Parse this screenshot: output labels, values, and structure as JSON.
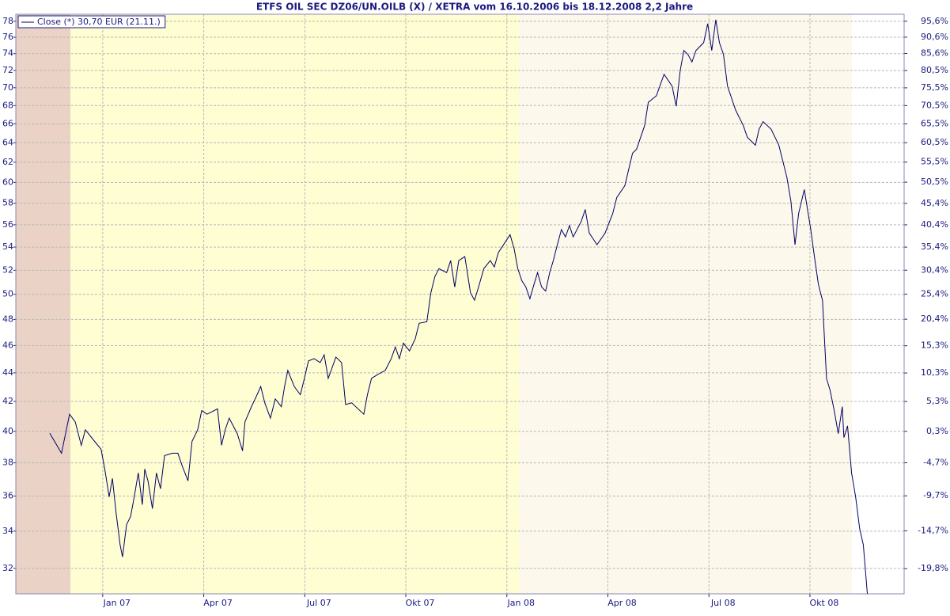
{
  "chart_data": {
    "type": "line",
    "title": "ETFS OIL SEC DZ06/UN.OILB (X) / XETRA vom 16.10.2006 bis 18.12.2008 2,2 Jahre",
    "x": [
      2006.869,
      2006.898,
      2006.918,
      2006.932,
      2006.947,
      2006.957,
      2006.98,
      2006.996,
      2007.006,
      2007.016,
      2007.024,
      2007.033,
      2007.043,
      2007.049,
      2007.059,
      2007.069,
      2007.078,
      2007.088,
      2007.098,
      2007.104,
      2007.112,
      2007.123,
      2007.133,
      2007.143,
      2007.153,
      2007.172,
      2007.186,
      2007.196,
      2007.211,
      2007.221,
      2007.235,
      2007.245,
      2007.258,
      2007.284,
      2007.294,
      2007.303,
      2007.313,
      2007.333,
      2007.346,
      2007.352,
      2007.368,
      2007.382,
      2007.391,
      2007.401,
      2007.415,
      2007.427,
      2007.442,
      2007.45,
      2007.458,
      2007.474,
      2007.489,
      2007.499,
      2007.509,
      2007.523,
      2007.538,
      2007.548,
      2007.558,
      2007.577,
      2007.591,
      2007.601,
      2007.616,
      2007.646,
      2007.655,
      2007.665,
      2007.681,
      2007.699,
      2007.714,
      2007.724,
      2007.734,
      2007.744,
      2007.759,
      2007.773,
      2007.783,
      2007.802,
      2007.812,
      2007.822,
      2007.832,
      2007.851,
      2007.861,
      2007.871,
      2007.881,
      2007.896,
      2007.91,
      2007.92,
      2007.93,
      2007.943,
      2007.959,
      2007.969,
      2007.979,
      2007.998,
      2008.008,
      2008.018,
      2008.027,
      2008.037,
      2008.047,
      2008.057,
      2008.067,
      2008.076,
      2008.086,
      2008.096,
      2008.106,
      2008.115,
      2008.125,
      2008.135,
      2008.145,
      2008.155,
      2008.164,
      2008.184,
      2008.194,
      2008.204,
      2008.223,
      2008.243,
      2008.262,
      2008.272,
      2008.292,
      2008.311,
      2008.321,
      2008.341,
      2008.35,
      2008.37,
      2008.389,
      2008.409,
      2008.419,
      2008.429,
      2008.438,
      2008.448,
      2008.458,
      2008.468,
      2008.487,
      2008.497,
      2008.507,
      2008.517,
      2008.526,
      2008.536,
      2008.546,
      2008.566,
      2008.585,
      2008.595,
      2008.615,
      2008.624,
      2008.634,
      2008.654,
      2008.673,
      2008.693,
      2008.703,
      2008.713,
      2008.722,
      2008.736,
      2008.752,
      2008.761,
      2008.771,
      2008.781,
      2008.791,
      2008.8,
      2008.81,
      2008.82,
      2008.83,
      2008.834,
      2008.843,
      2008.853,
      2008.863,
      2008.873,
      2008.882,
      2008.892
    ],
    "series": [
      {
        "name": "Close (*) 30,70 EUR (21.11.)",
        "color": "#000066",
        "values": [
          39.88,
          38.6,
          41.13,
          40.62,
          39.1,
          40.1,
          39.35,
          38.85,
          37.48,
          35.95,
          37.05,
          35.05,
          33.26,
          32.6,
          34.36,
          34.82,
          35.95,
          37.38,
          35.5,
          37.62,
          36.9,
          35.27,
          37.38,
          36.43,
          38.45,
          38.6,
          38.6,
          37.86,
          36.9,
          39.35,
          40.1,
          41.38,
          41.13,
          41.49,
          39.1,
          40.1,
          40.87,
          39.85,
          38.75,
          40.62,
          41.64,
          42.46,
          43.03,
          41.9,
          40.87,
          42.17,
          41.64,
          43.03,
          44.17,
          43.03,
          42.46,
          43.6,
          44.86,
          45.03,
          44.74,
          45.31,
          43.6,
          45.14,
          44.74,
          41.79,
          41.9,
          41.13,
          42.46,
          43.6,
          43.89,
          44.17,
          45.03,
          45.89,
          45.03,
          46.18,
          45.6,
          46.48,
          47.7,
          47.82,
          50.13,
          51.47,
          52.14,
          51.8,
          52.83,
          50.6,
          52.83,
          53.17,
          50.13,
          49.52,
          50.6,
          52.14,
          52.83,
          52.28,
          53.52,
          54.55,
          55.1,
          53.86,
          52.14,
          51.13,
          50.6,
          49.64,
          50.8,
          51.8,
          50.6,
          50.27,
          51.8,
          52.83,
          54.21,
          55.56,
          54.9,
          55.93,
          54.9,
          56.3,
          57.41,
          55.24,
          54.21,
          55.24,
          57.04,
          58.54,
          59.69,
          62.92,
          63.33,
          65.83,
          68.36,
          69.09,
          71.55,
          70.18,
          67.92,
          72.0,
          74.38,
          73.9,
          73.0,
          74.38,
          75.33,
          77.7,
          74.38,
          78.2,
          75.33,
          73.9,
          70.18,
          67.5,
          65.83,
          64.58,
          63.75,
          65.42,
          66.25,
          65.42,
          63.75,
          60.48,
          58.15,
          54.21,
          57.04,
          59.31,
          55.56,
          53.17,
          50.8,
          49.52,
          43.6,
          42.75,
          41.38,
          39.85,
          41.64,
          39.6,
          40.36,
          37.38,
          35.95,
          34.14,
          33.26,
          30.7
        ]
      }
    ],
    "xlim": [
      2006.785,
      2008.983
    ],
    "xticks": [
      {
        "value": 2007.0,
        "label": "Jan 07"
      },
      {
        "value": 2007.25,
        "label": "Apr 07"
      },
      {
        "value": 2007.5,
        "label": "Jul 07"
      },
      {
        "value": 2007.75,
        "label": "Okt 07"
      },
      {
        "value": 2008.0,
        "label": "Jan 08"
      },
      {
        "value": 2008.25,
        "label": "Apr 08"
      },
      {
        "value": 2008.5,
        "label": "Jul 08"
      },
      {
        "value": 2008.75,
        "label": "Okt 08"
      }
    ],
    "ylim": [
      30.7,
      78.9
    ],
    "yticks": [
      32,
      34,
      36,
      38,
      40,
      42,
      44,
      46,
      48,
      50,
      52,
      54,
      56,
      58,
      60,
      62,
      64,
      66,
      68,
      70,
      72,
      74,
      76,
      78
    ],
    "y2lim": [
      -23.02,
      97.84
    ],
    "y2ticks": [
      {
        "value": -19.8,
        "label": "-19,8%"
      },
      {
        "value": -14.7,
        "label": "-14,7%"
      },
      {
        "value": -9.7,
        "label": "-9,7%"
      },
      {
        "value": -4.7,
        "label": "-4,7%"
      },
      {
        "value": 0.3,
        "label": "0,3%"
      },
      {
        "value": 5.3,
        "label": "5,3%"
      },
      {
        "value": 10.3,
        "label": "10,3%"
      },
      {
        "value": 15.3,
        "label": "15,3%"
      },
      {
        "value": 20.4,
        "label": "20,4%"
      },
      {
        "value": 25.4,
        "label": "25,4%"
      },
      {
        "value": 30.4,
        "label": "30,4%"
      },
      {
        "value": 35.4,
        "label": "35,4%"
      },
      {
        "value": 40.4,
        "label": "40,4%"
      },
      {
        "value": 45.4,
        "label": "45,4%"
      },
      {
        "value": 50.5,
        "label": "50,5%"
      },
      {
        "value": 55.5,
        "label": "55,5%"
      },
      {
        "value": 60.5,
        "label": "60,5%"
      },
      {
        "value": 65.5,
        "label": "65,5%"
      },
      {
        "value": 70.5,
        "label": "70,5%"
      },
      {
        "value": 75.5,
        "label": "75,5%"
      },
      {
        "value": 80.5,
        "label": "80,5%"
      },
      {
        "value": 85.6,
        "label": "85,6%"
      },
      {
        "value": 90.6,
        "label": "90,6%"
      },
      {
        "value": 95.6,
        "label": "95,6%"
      }
    ],
    "log_scale": true,
    "grid": true,
    "legend": "top-left"
  }
}
